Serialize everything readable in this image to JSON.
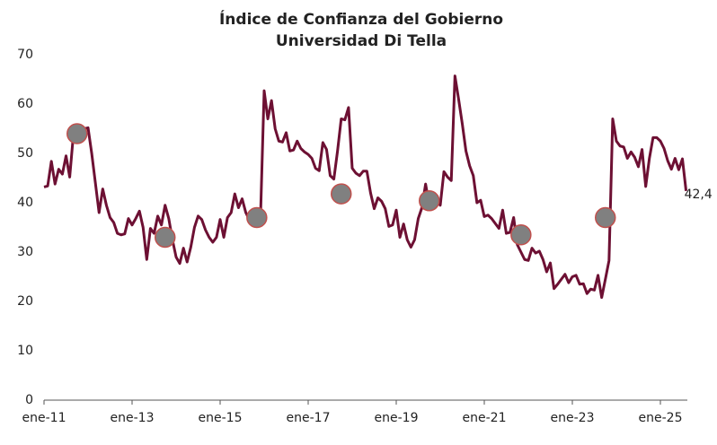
{
  "chart_data": {
    "type": "line",
    "title": "Índice de Confianza del Gobierno",
    "subtitle": "Universidad Di Tella",
    "categories": [
      "ene-11",
      null,
      null,
      null,
      null,
      null,
      null,
      null,
      null,
      null,
      null,
      null,
      null,
      null,
      null,
      null,
      null,
      null,
      null,
      null,
      null,
      null,
      null,
      null,
      "ene-13",
      null,
      null,
      null,
      null,
      null,
      null,
      null,
      null,
      null,
      null,
      null,
      null,
      null,
      null,
      null,
      null,
      null,
      null,
      null,
      null,
      null,
      null,
      null,
      "ene-15",
      null,
      null,
      null,
      null,
      null,
      null,
      null,
      null,
      null,
      null,
      null,
      null,
      null,
      null,
      null,
      null,
      null,
      null,
      null,
      null,
      null,
      null,
      null,
      "ene-17",
      null,
      null,
      null,
      null,
      null,
      null,
      null,
      null,
      null,
      null,
      null,
      null,
      null,
      null,
      null,
      null,
      null,
      null,
      null,
      null,
      null,
      null,
      null,
      "ene-19",
      null,
      null,
      null,
      null,
      null,
      null,
      null,
      null,
      null,
      null,
      null,
      null,
      null,
      null,
      null,
      null,
      null,
      null,
      null,
      null,
      null,
      null,
      null,
      "ene-21",
      null,
      null,
      null,
      null,
      null,
      null,
      null,
      null,
      null,
      null,
      null,
      null,
      null,
      null,
      null,
      null,
      null,
      null,
      null,
      null,
      null,
      null,
      null,
      "ene-23",
      null,
      null,
      null,
      null,
      null,
      null,
      null,
      null,
      null,
      null,
      null,
      null,
      null,
      null,
      null,
      null,
      null,
      null,
      null,
      null,
      null,
      null,
      null,
      "ene-25",
      null,
      null,
      null,
      null,
      null,
      null,
      null
    ],
    "series": [
      {
        "color": "#6d1033",
        "values": [
          43.2,
          43.4,
          48.4,
          43.8,
          46.8,
          45.8,
          49.5,
          45.2,
          53.8,
          54.2,
          54.5,
          55.0,
          55.2,
          50,
          44,
          38,
          42.8,
          39.5,
          37,
          36,
          33.8,
          33.5,
          33.7,
          36.8,
          35.5,
          36.8,
          38.3,
          35,
          28.5,
          34.8,
          33.8,
          37.3,
          35.5,
          39.5,
          36.8,
          32.5,
          29,
          27.7,
          30.8,
          28,
          31,
          35,
          37.3,
          36.6,
          34.5,
          33,
          32,
          33,
          36.6,
          33,
          37,
          38,
          41.8,
          39,
          40.8,
          38,
          36.5,
          35.8,
          37.8,
          37,
          62.7,
          57,
          60.7,
          55,
          52.5,
          52.3,
          54.2,
          50.5,
          50.7,
          52.5,
          51,
          50.3,
          49.8,
          49,
          47,
          46.5,
          52.2,
          50.8,
          45.5,
          44.8,
          50.5,
          57,
          56.8,
          59.3,
          47,
          46,
          45.5,
          46.4,
          46.4,
          42,
          38.8,
          41,
          40.3,
          38.8,
          35.2,
          35.5,
          38.5,
          33,
          35.7,
          32.5,
          31,
          32.5,
          36.8,
          39,
          43.8,
          39.5,
          40,
          40.4,
          39.5,
          46.3,
          45.2,
          44.5,
          65.7,
          61,
          56,
          50.5,
          47.5,
          45.5,
          40,
          40.5,
          37.2,
          37.5,
          36.8,
          35.8,
          34.8,
          38.5,
          33.8,
          34,
          37,
          31.5,
          30,
          28.5,
          28.3,
          30.8,
          29.8,
          30.2,
          28.5,
          26,
          27.8,
          22.6,
          23.5,
          24.5,
          25.5,
          23.8,
          25,
          25.3,
          23.5,
          23.6,
          21.6,
          22.5,
          22.3,
          25.3,
          20.8,
          24.5,
          28.3,
          57,
          52.5,
          51.5,
          51.3,
          49,
          50.3,
          49.2,
          47.3,
          50.8,
          43.3,
          49,
          53.2,
          53.2,
          52.5,
          51,
          48.5,
          46.8,
          49,
          46.7,
          48.9,
          42.4
        ],
        "value_labels": [
          null,
          null,
          null,
          null,
          null,
          null,
          null,
          null,
          null,
          null,
          null,
          null,
          null,
          null,
          null,
          null,
          null,
          null,
          null,
          null,
          null,
          null,
          null,
          null,
          null,
          null,
          null,
          null,
          null,
          null,
          null,
          null,
          null,
          null,
          null,
          null,
          null,
          null,
          null,
          null,
          null,
          null,
          null,
          null,
          null,
          null,
          null,
          null,
          null,
          null,
          null,
          null,
          null,
          null,
          null,
          null,
          null,
          null,
          null,
          null,
          null,
          null,
          null,
          null,
          null,
          null,
          null,
          null,
          null,
          null,
          null,
          null,
          null,
          null,
          null,
          null,
          null,
          null,
          null,
          null,
          null,
          null,
          null,
          null,
          null,
          null,
          null,
          null,
          null,
          null,
          null,
          null,
          null,
          null,
          null,
          null,
          null,
          null,
          null,
          null,
          null,
          null,
          null,
          null,
          null,
          null,
          null,
          null,
          null,
          null,
          null,
          null,
          null,
          null,
          null,
          null,
          null,
          null,
          null,
          null,
          null,
          null,
          null,
          null,
          null,
          null,
          null,
          null,
          null,
          null,
          null,
          null,
          null,
          null,
          null,
          null,
          null,
          null,
          null,
          null,
          null,
          null,
          null,
          null,
          null,
          null,
          null,
          null,
          null,
          null,
          null,
          null,
          null,
          null,
          null,
          null,
          null,
          null,
          null,
          null,
          null,
          null,
          null,
          null,
          null,
          null,
          null,
          null,
          null,
          null,
          null,
          null,
          null,
          null,
          null,
          "42,4"
        ]
      },
      {
        "color": "#808080",
        "edge": "#c0504d",
        "marker_only": true,
        "values": [
          null,
          null,
          null,
          null,
          null,
          null,
          null,
          null,
          null,
          54,
          null,
          null,
          null,
          null,
          null,
          null,
          null,
          null,
          null,
          null,
          null,
          null,
          null,
          null,
          null,
          null,
          null,
          null,
          null,
          null,
          null,
          null,
          null,
          33,
          null,
          null,
          null,
          null,
          null,
          null,
          null,
          null,
          null,
          null,
          null,
          null,
          null,
          null,
          null,
          null,
          null,
          null,
          null,
          null,
          null,
          null,
          null,
          null,
          37,
          null,
          null,
          null,
          null,
          null,
          null,
          null,
          null,
          null,
          null,
          null,
          null,
          null,
          null,
          null,
          null,
          null,
          null,
          null,
          null,
          null,
          null,
          41.8,
          null,
          null,
          null,
          null,
          null,
          null,
          null,
          null,
          null,
          null,
          null,
          null,
          null,
          null,
          null,
          null,
          null,
          null,
          null,
          null,
          null,
          null,
          null,
          40.4,
          null,
          null,
          null,
          null,
          null,
          null,
          null,
          null,
          null,
          null,
          null,
          null,
          null,
          null,
          null,
          null,
          null,
          null,
          null,
          null,
          null,
          null,
          null,
          null,
          33.5,
          null,
          null,
          null,
          null,
          null,
          null,
          null,
          null,
          null,
          null,
          null,
          null,
          null,
          null,
          null,
          null,
          null,
          null,
          null,
          null,
          null,
          null,
          37,
          null,
          null,
          null,
          null,
          null,
          null,
          null,
          null,
          null,
          null,
          null,
          null,
          null,
          null,
          null,
          null,
          null,
          null,
          null,
          null,
          null,
          null
        ]
      }
    ],
    "ylim": [
      0,
      70
    ],
    "yticks": [
      0,
      10,
      20,
      30,
      40,
      50,
      60,
      70
    ]
  }
}
